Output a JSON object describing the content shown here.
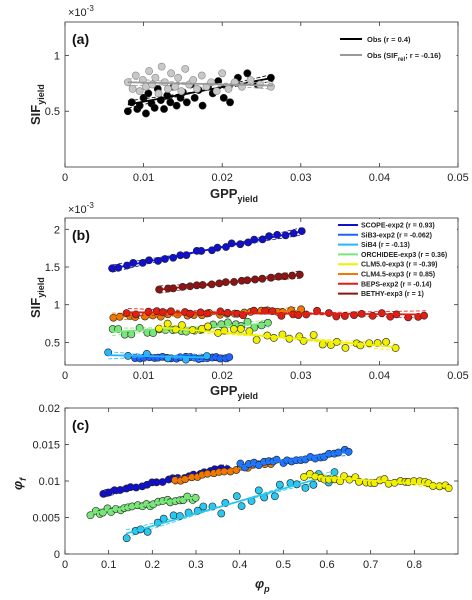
{
  "chart_data": [
    {
      "panel": "(a)",
      "type": "scatter",
      "xlabel": "GPP",
      "xlabel_sub": "yield",
      "ylabel": "SIF",
      "ylabel_sub": "yield",
      "y_exponent": "×10",
      "y_exponent_power": "-3",
      "xlim": [
        0,
        0.05
      ],
      "ylim": [
        0,
        1.3
      ],
      "xticks": [
        "0",
        "0.01",
        "0.02",
        "0.03",
        "0.04",
        "0.05"
      ],
      "yticks": [
        "0.5",
        "1"
      ],
      "ytick_values": [
        0.5,
        1
      ],
      "legend_position": "top-right",
      "series": [
        {
          "name": "Obs (r = 0.4)",
          "color": "#000000",
          "fill": "#000000",
          "x": [
            0.008,
            0.0085,
            0.0092,
            0.0095,
            0.01,
            0.0103,
            0.0106,
            0.011,
            0.0114,
            0.0118,
            0.0122,
            0.0126,
            0.013,
            0.0134,
            0.0138,
            0.0142,
            0.0147,
            0.015,
            0.0155,
            0.016,
            0.0165,
            0.017,
            0.0175,
            0.0182,
            0.0188,
            0.0195,
            0.0202,
            0.021,
            0.022,
            0.0232,
            0.0245,
            0.0262
          ],
          "y": [
            0.5,
            0.58,
            0.52,
            0.55,
            0.62,
            0.48,
            0.66,
            0.57,
            0.53,
            0.7,
            0.6,
            0.52,
            0.64,
            0.58,
            0.72,
            0.55,
            0.62,
            0.67,
            0.58,
            0.74,
            0.62,
            0.69,
            0.55,
            0.72,
            0.66,
            0.77,
            0.62,
            0.58,
            0.8,
            0.84,
            0.74,
            0.8
          ],
          "fit": {
            "x": [
              0.008,
              0.0265
            ],
            "y": [
              0.56,
              0.8
            ]
          }
        },
        {
          "name": "Obs (SIF",
          "name_sub": "rel",
          "name_tail": "; r = -0.16)",
          "color": "#999999",
          "fill": "#c8c8c8",
          "x": [
            0.008,
            0.0086,
            0.009,
            0.0095,
            0.0099,
            0.0103,
            0.0107,
            0.0111,
            0.0115,
            0.0119,
            0.0123,
            0.0127,
            0.0131,
            0.0135,
            0.014,
            0.0144,
            0.0148,
            0.0153,
            0.0158,
            0.0163,
            0.0168,
            0.0174,
            0.018,
            0.0186,
            0.0193,
            0.02,
            0.0208,
            0.0216,
            0.0225,
            0.0236,
            0.0248,
            0.0262
          ],
          "y": [
            0.76,
            0.7,
            0.82,
            0.68,
            0.78,
            0.72,
            0.86,
            0.74,
            0.8,
            0.66,
            0.9,
            0.76,
            0.7,
            0.84,
            0.72,
            0.8,
            0.68,
            0.88,
            0.74,
            0.78,
            0.7,
            0.82,
            0.72,
            0.76,
            0.68,
            0.84,
            0.7,
            0.76,
            0.72,
            0.78,
            0.74,
            0.72
          ],
          "fit": {
            "x": [
              0.008,
              0.0265
            ],
            "y": [
              0.76,
              0.73
            ]
          }
        }
      ]
    },
    {
      "panel": "(b)",
      "type": "scatter",
      "xlabel": "GPP",
      "xlabel_sub": "yield",
      "ylabel": "SIF",
      "ylabel_sub": "yield",
      "y_exponent": "×10",
      "y_exponent_power": "-3",
      "xlim": [
        0,
        0.05
      ],
      "ylim": [
        0.2,
        2.15
      ],
      "xticks": [
        "0",
        "0.01",
        "0.02",
        "0.03",
        "0.04",
        "0.05"
      ],
      "yticks": [
        "0.5",
        "1",
        "1.5",
        "2"
      ],
      "ytick_values": [
        0.5,
        1,
        1.5,
        2
      ],
      "legend_position": "top-right",
      "series": [
        {
          "name": "SCOPE-exp2 (r = 0.93)",
          "color": "#1010c8",
          "xrange": [
            0.006,
            0.03
          ],
          "y0": 1.48,
          "y1": 1.97,
          "n": 26,
          "noise": 0.02
        },
        {
          "name": "SiB3-exp2 (r = -0.062)",
          "color": "#1e64ff",
          "xrange": [
            0.009,
            0.021
          ],
          "y0": 0.3,
          "y1": 0.29,
          "n": 22,
          "noise": 0.015
        },
        {
          "name": "SiB4 (r = -0.13)",
          "color": "#28b4ff",
          "xrange": [
            0.0055,
            0.018
          ],
          "y0": 0.33,
          "y1": 0.3,
          "n": 6,
          "noise": 0.05
        },
        {
          "name": "ORCHIDEE-exp3 (r = 0.36)",
          "color": "#78e678",
          "xrange": [
            0.006,
            0.026
          ],
          "y0": 0.64,
          "y1": 0.75,
          "n": 24,
          "noise": 0.05
        },
        {
          "name": "CLM5.0-exp3 (r = -0.39)",
          "color": "#f0f000",
          "xrange": [
            0.012,
            0.042
          ],
          "y0": 0.7,
          "y1": 0.44,
          "n": 30,
          "noise": 0.07
        },
        {
          "name": "CLM4.5-exp3 (r = 0.85)",
          "color": "#f07800",
          "xrange": [
            0.006,
            0.03
          ],
          "y0": 0.84,
          "y1": 0.92,
          "n": 24,
          "noise": 0.02
        },
        {
          "name": "BEPS-exp2 (r = -0.14)",
          "color": "#e11e14",
          "xrange": [
            0.008,
            0.046
          ],
          "y0": 0.9,
          "y1": 0.87,
          "n": 34,
          "noise": 0.04
        },
        {
          "name": "BETHY-exp3 (r = 1)",
          "color": "#8c1414",
          "xrange": [
            0.012,
            0.03
          ],
          "y0": 1.2,
          "y1": 1.4,
          "n": 20,
          "noise": 0.005
        }
      ]
    },
    {
      "panel": "(c)",
      "type": "scatter",
      "xlabel": "φ",
      "xlabel_sub": "p",
      "ylabel": "φ",
      "ylabel_sub": "f",
      "xlim": [
        0,
        0.9
      ],
      "ylim": [
        0,
        0.02
      ],
      "xticks": [
        "0",
        "0.1",
        "0.2",
        "0.3",
        "0.4",
        "0.5",
        "0.6",
        "0.7",
        "0.8"
      ],
      "xtick_values": [
        0,
        0.1,
        0.2,
        0.3,
        0.4,
        0.5,
        0.6,
        0.7,
        0.8
      ],
      "yticks": [
        "0",
        "0.005",
        "0.01",
        "0.015",
        "0.02"
      ],
      "ytick_values": [
        0,
        0.005,
        0.01,
        0.015,
        0.02
      ],
      "series": [
        {
          "color": "#1010c8",
          "xrange": [
            0.09,
            0.37
          ],
          "y0": 0.0083,
          "y1": 0.0118,
          "n": 24,
          "noise": 0.0002
        },
        {
          "color": "#f07800",
          "xrange": [
            0.25,
            0.47
          ],
          "y0": 0.01,
          "y1": 0.0125,
          "n": 18,
          "noise": 0.0002
        },
        {
          "color": "#78e678",
          "xrange": [
            0.06,
            0.3
          ],
          "y0": 0.0056,
          "y1": 0.0078,
          "n": 26,
          "noise": 0.0003
        },
        {
          "color": "#1e78ff",
          "xrange": [
            0.4,
            0.65
          ],
          "y0": 0.012,
          "y1": 0.014,
          "n": 24,
          "noise": 0.0004
        },
        {
          "color": "#28c8f0",
          "xrange": [
            0.14,
            0.62
          ],
          "y0": 0.0028,
          "y1": 0.011,
          "n": 28,
          "noise": 0.0009
        },
        {
          "color": "#f0f000",
          "xrange": [
            0.55,
            0.88
          ],
          "y0": 0.0107,
          "y1": 0.0093,
          "n": 30,
          "noise": 0.0004
        }
      ]
    }
  ]
}
